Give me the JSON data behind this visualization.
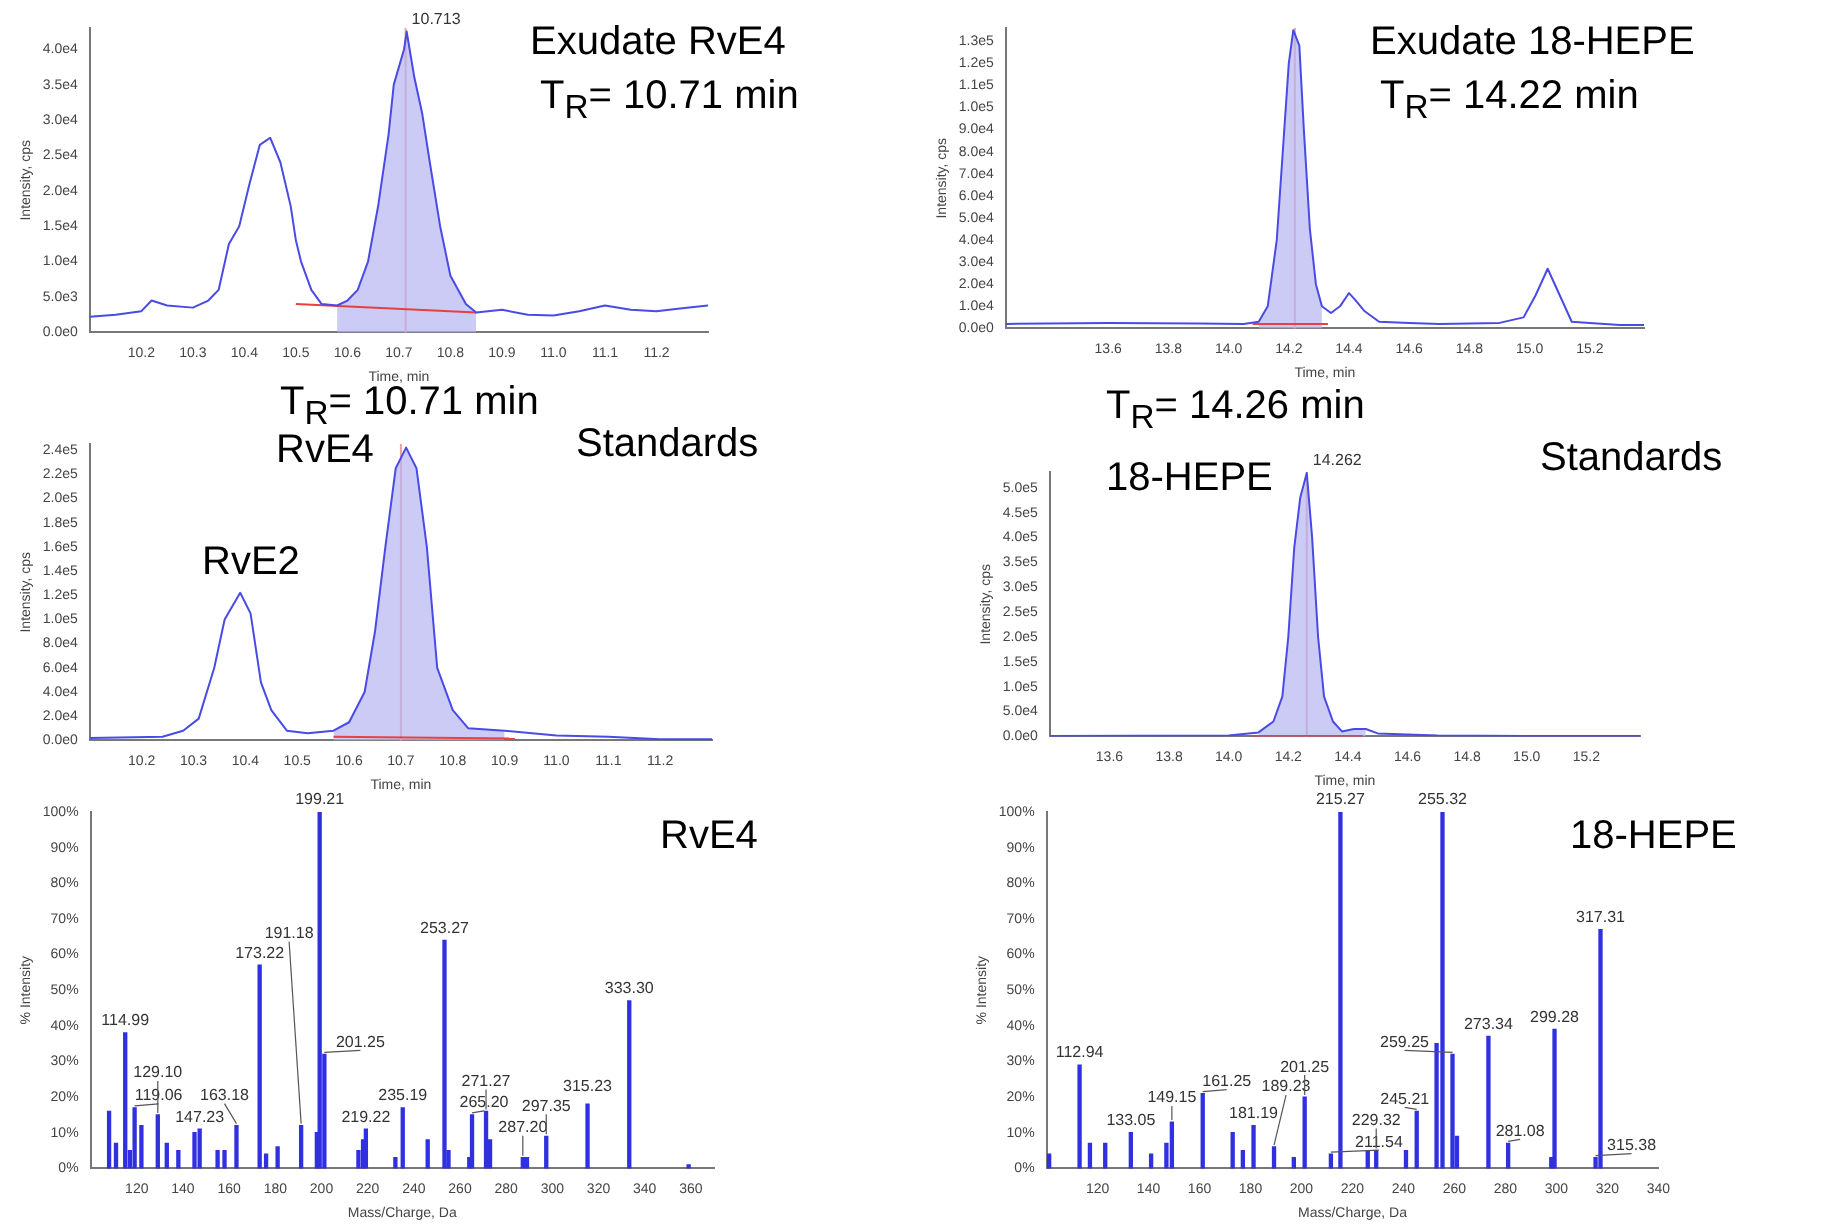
{
  "chart_data": [
    {
      "type": "line",
      "xlabel": "Time, min",
      "ylabel": "Intensity, cps",
      "xlim": [
        10.1,
        11.3
      ],
      "ylim": [
        0,
        43000
      ],
      "xticks": [
        10.2,
        10.3,
        10.4,
        10.5,
        10.6,
        10.7,
        10.8,
        10.9,
        {
          "value": 11,
          "label": "11.0"
        },
        11.1,
        11.2
      ],
      "yticks": [
        {
          "value": 0,
          "label": "0.0e0"
        },
        {
          "value": 5000,
          "label": "5.0e3"
        },
        {
          "value": 10000,
          "label": "1.0e4"
        },
        {
          "value": 15000,
          "label": "1.5e4"
        },
        {
          "value": 20000,
          "label": "2.0e4"
        },
        {
          "value": 25000,
          "label": "2.5e4"
        },
        {
          "value": 30000,
          "label": "3.0e4"
        },
        {
          "value": 35000,
          "label": "3.5e4"
        },
        {
          "value": 40000,
          "label": "4.0e4"
        }
      ],
      "series": [
        {
          "type": "line",
          "color": "#4a4ae6",
          "x": [
            10.1,
            10.15,
            10.2,
            10.22,
            10.25,
            10.3,
            10.33,
            10.35,
            10.37,
            10.39,
            10.41,
            10.43,
            10.45,
            10.47,
            10.49,
            10.5,
            10.51,
            10.53,
            10.55,
            10.58,
            10.6,
            10.62,
            10.64,
            10.66,
            10.68,
            10.69,
            10.71,
            10.715,
            10.73,
            10.745,
            10.76,
            10.78,
            10.8,
            10.83,
            10.85,
            10.9,
            10.95,
            11.0,
            11.05,
            11.1,
            11.15,
            11.2,
            11.25,
            11.3
          ],
          "values": [
            2200,
            2500,
            3000,
            4500,
            3800,
            3500,
            4500,
            6000,
            12500,
            15000,
            21000,
            26500,
            27500,
            24000,
            17800,
            13000,
            10000,
            6000,
            4000,
            3800,
            4500,
            6000,
            10000,
            18000,
            28000,
            35000,
            40000,
            42500,
            36000,
            31000,
            24000,
            15000,
            8000,
            4000,
            2800,
            3200,
            2500,
            2400,
            3000,
            3800,
            3200,
            3000,
            3400,
            3800
          ]
        },
        {
          "type": "area",
          "color": "#b4b4f0",
          "x": [
            10.58,
            10.6,
            10.62,
            10.64,
            10.66,
            10.68,
            10.69,
            10.71,
            10.715,
            10.73,
            10.745,
            10.76,
            10.78,
            10.8,
            10.83,
            10.85
          ],
          "values": [
            3800,
            4500,
            6000,
            10000,
            18000,
            28000,
            35000,
            40000,
            42500,
            36000,
            31000,
            24000,
            15000,
            8000,
            4000,
            2800
          ]
        },
        {
          "type": "line",
          "color": "#e84040",
          "x": [
            10.5,
            10.85
          ],
          "values": [
            4000,
            2800
          ]
        }
      ],
      "ref_lines": [
        {
          "axis": "x",
          "value": 10.713,
          "color": "#f0a0a0"
        }
      ],
      "annotations": [
        "Exudate RvE4",
        "T$_{R}$= 10.71 min",
        {
          "text": "10.713",
          "x": 10.713,
          "y": 42500
        }
      ]
    },
    {
      "type": "line",
      "xlabel": "Time, min",
      "ylabel": "Intensity, cps",
      "xlim": [
        13.26,
        15.38
      ],
      "ylim": [
        0,
        136000
      ],
      "xticks": [
        13.6,
        13.8,
        {
          "value": 14,
          "label": "14.0"
        },
        14.2,
        14.4,
        14.6,
        14.8,
        {
          "value": 15,
          "label": "15.0"
        },
        15.2
      ],
      "yticks": [
        {
          "value": 0,
          "label": "0.0e0"
        },
        {
          "value": 10000,
          "label": "1.0e4"
        },
        {
          "value": 20000,
          "label": "2.0e4"
        },
        {
          "value": 30000,
          "label": "3.0e4"
        },
        {
          "value": 40000,
          "label": "4.0e4"
        },
        {
          "value": 50000,
          "label": "5.0e4"
        },
        {
          "value": 60000,
          "label": "6.0e4"
        },
        {
          "value": 70000,
          "label": "7.0e4"
        },
        {
          "value": 80000,
          "label": "8.0e4"
        },
        {
          "value": 90000,
          "label": "9.0e4"
        },
        {
          "value": 100000,
          "label": "1.0e5"
        },
        {
          "value": 110000,
          "label": "1.1e5"
        },
        {
          "value": 120000,
          "label": "1.2e5"
        },
        {
          "value": 130000,
          "label": "1.3e5"
        }
      ],
      "series": [
        {
          "type": "line",
          "color": "#4a4ae6",
          "x": [
            13.26,
            13.6,
            13.9,
            14.05,
            14.1,
            14.13,
            14.16,
            14.18,
            14.2,
            14.215,
            14.235,
            14.25,
            14.27,
            14.29,
            14.31,
            14.34,
            14.37,
            14.4,
            14.42,
            14.45,
            14.5,
            14.6,
            14.7,
            14.9,
            14.98,
            15.02,
            15.06,
            15.1,
            15.14,
            15.2,
            15.3,
            15.38
          ],
          "values": [
            2000,
            2500,
            2200,
            2000,
            3000,
            10000,
            40000,
            80000,
            120000,
            135000,
            128000,
            90000,
            45000,
            20000,
            10000,
            7000,
            10000,
            16000,
            13000,
            8000,
            3000,
            2500,
            2000,
            2500,
            5000,
            15000,
            27000,
            15000,
            3000,
            2500,
            1500,
            1500
          ]
        },
        {
          "type": "area",
          "color": "#b4b4f0",
          "x": [
            14.1,
            14.13,
            14.16,
            14.18,
            14.2,
            14.215,
            14.235,
            14.25,
            14.27,
            14.29,
            14.31
          ],
          "values": [
            3000,
            10000,
            40000,
            80000,
            120000,
            135000,
            128000,
            90000,
            45000,
            20000,
            10000
          ]
        },
        {
          "type": "line",
          "color": "#e84040",
          "x": [
            14.08,
            14.33
          ],
          "values": [
            2000,
            2000
          ]
        }
      ],
      "ref_lines": [
        {
          "axis": "x",
          "value": 14.22,
          "color": "#f0a0a0"
        }
      ],
      "annotations": [
        "Exudate 18-HEPE",
        "T$_{R}$= 14.22 min"
      ]
    },
    {
      "type": "line",
      "xlabel": "Time, min",
      "ylabel": "Intensity, cps",
      "xlim": [
        10.1,
        11.3
      ],
      "ylim": [
        0,
        245000
      ],
      "xticks": [
        10.2,
        10.3,
        10.4,
        10.5,
        10.6,
        10.7,
        10.8,
        10.9,
        {
          "value": 11,
          "label": "11.0"
        },
        11.1,
        11.2
      ],
      "yticks": [
        {
          "value": 0,
          "label": "0.0e0"
        },
        {
          "value": 20000,
          "label": "2.0e4"
        },
        {
          "value": 40000,
          "label": "4.0e4"
        },
        {
          "value": 60000,
          "label": "6.0e4"
        },
        {
          "value": 80000,
          "label": "8.0e4"
        },
        {
          "value": 100000,
          "label": "1.0e5"
        },
        {
          "value": 120000,
          "label": "1.2e5"
        },
        {
          "value": 140000,
          "label": "1.4e5"
        },
        {
          "value": 160000,
          "label": "1.6e5"
        },
        {
          "value": 180000,
          "label": "1.8e5"
        },
        {
          "value": 200000,
          "label": "2.0e5"
        },
        {
          "value": 220000,
          "label": "2.2e5"
        },
        {
          "value": 240000,
          "label": "2.4e5"
        }
      ],
      "series": [
        {
          "type": "line",
          "color": "#4a4ae6",
          "x": [
            10.1,
            10.24,
            10.28,
            10.31,
            10.34,
            10.36,
            10.39,
            10.41,
            10.43,
            10.45,
            10.48,
            10.52,
            10.57,
            10.6,
            10.63,
            10.65,
            10.67,
            10.69,
            10.71,
            10.73,
            10.75,
            10.77,
            10.8,
            10.83,
            10.9,
            11.0,
            11.1,
            11.2,
            11.3
          ],
          "values": [
            2000,
            3000,
            8000,
            18000,
            60000,
            100000,
            122000,
            105000,
            48000,
            25000,
            8000,
            6000,
            8000,
            15000,
            40000,
            90000,
            160000,
            225000,
            242000,
            225000,
            160000,
            60000,
            25000,
            10000,
            8000,
            4000,
            3000,
            1000,
            1000
          ]
        },
        {
          "type": "area",
          "color": "#b4b4f0",
          "x": [
            10.57,
            10.6,
            10.63,
            10.65,
            10.67,
            10.69,
            10.71,
            10.73,
            10.75,
            10.77,
            10.8,
            10.83,
            10.9
          ],
          "values": [
            8000,
            15000,
            40000,
            90000,
            160000,
            225000,
            242000,
            225000,
            160000,
            60000,
            25000,
            10000,
            8000
          ]
        },
        {
          "type": "line",
          "color": "#e84040",
          "x": [
            10.57,
            10.92
          ],
          "values": [
            3000,
            1500
          ]
        }
      ],
      "ref_lines": [
        {
          "axis": "x",
          "value": 10.7,
          "color": "#f0a0a0"
        }
      ],
      "annotations": [
        "T$_{R}$= 10.71 min",
        "RvE4",
        "Standards",
        "RvE2"
      ]
    },
    {
      "type": "line",
      "xlabel": "Time, min",
      "ylabel": "Intensity, cps",
      "xlim": [
        13.4,
        15.38
      ],
      "ylim": [
        0,
        532000
      ],
      "xticks": [
        13.6,
        13.8,
        {
          "value": 14,
          "label": "14.0"
        },
        14.2,
        14.4,
        14.6,
        14.8,
        {
          "value": 15,
          "label": "15.0"
        },
        15.2
      ],
      "yticks": [
        {
          "value": 0,
          "label": "0.0e0"
        },
        {
          "value": 50000,
          "label": "5.0e4"
        },
        {
          "value": 100000,
          "label": "1.0e5"
        },
        {
          "value": 150000,
          "label": "1.5e5"
        },
        {
          "value": 200000,
          "label": "2.0e5"
        },
        {
          "value": 250000,
          "label": "2.5e5"
        },
        {
          "value": 300000,
          "label": "3.0e5"
        },
        {
          "value": 350000,
          "label": "3.5e5"
        },
        {
          "value": 400000,
          "label": "4.0e5"
        },
        {
          "value": 450000,
          "label": "4.5e5"
        },
        {
          "value": 500000,
          "label": "5.0e5"
        }
      ],
      "series": [
        {
          "type": "line",
          "color": "#4a4ae6",
          "x": [
            13.4,
            14.0,
            14.1,
            14.15,
            14.18,
            14.2,
            14.22,
            14.24,
            14.262,
            14.28,
            14.3,
            14.32,
            14.35,
            14.38,
            14.42,
            14.46,
            14.5,
            14.6,
            14.7,
            15.0,
            15.38
          ],
          "values": [
            1000,
            2000,
            8000,
            30000,
            80000,
            200000,
            380000,
            480000,
            530000,
            400000,
            200000,
            80000,
            30000,
            10000,
            15000,
            15000,
            6000,
            4000,
            2000,
            1000,
            1000
          ]
        },
        {
          "type": "area",
          "color": "#b4b4f0",
          "x": [
            14.1,
            14.15,
            14.18,
            14.2,
            14.22,
            14.24,
            14.262,
            14.28,
            14.3,
            14.32,
            14.35,
            14.38,
            14.42,
            14.46
          ],
          "values": [
            8000,
            30000,
            80000,
            200000,
            380000,
            480000,
            530000,
            400000,
            200000,
            80000,
            30000,
            10000,
            15000,
            15000
          ]
        },
        {
          "type": "line",
          "color": "#e84040",
          "x": [
            14.08,
            14.45
          ],
          "values": [
            1000,
            1000
          ]
        }
      ],
      "ref_lines": [
        {
          "axis": "x",
          "value": 14.262,
          "color": "#f0a0a0"
        }
      ],
      "annotations": [
        "T$_{R}$= 14.26 min",
        "18-HEPE",
        "Standards",
        {
          "text": "14.262",
          "x": 14.262,
          "y": 530000
        }
      ]
    },
    {
      "type": "bar",
      "xlabel": "Mass/Charge, Da",
      "ylabel": "% Intensity",
      "color": "#3030e0",
      "xlim": [
        100,
        370
      ],
      "ylim": [
        0,
        100
      ],
      "xticks": [
        120,
        140,
        160,
        180,
        200,
        220,
        240,
        260,
        280,
        300,
        320,
        340,
        360
      ],
      "yticks": [
        {
          "value": 0,
          "label": "0%"
        },
        {
          "value": 10,
          "label": "10%"
        },
        {
          "value": 20,
          "label": "20%"
        },
        {
          "value": 30,
          "label": "30%"
        },
        {
          "value": 40,
          "label": "40%"
        },
        {
          "value": 50,
          "label": "50%"
        },
        {
          "value": 60,
          "label": "60%"
        },
        {
          "value": 70,
          "label": "70%"
        },
        {
          "value": 80,
          "label": "80%"
        },
        {
          "value": 90,
          "label": "90%"
        },
        {
          "value": 100,
          "label": "100%"
        }
      ],
      "x": [
        108,
        111,
        114.99,
        117,
        119.06,
        122,
        129.1,
        133,
        138,
        145,
        147.23,
        155,
        158,
        163.18,
        173.22,
        176,
        181,
        191.18,
        198,
        199.21,
        201.25,
        216,
        218,
        219.22,
        232,
        235.19,
        246,
        253.27,
        255,
        264,
        265.2,
        271.27,
        273,
        287.2,
        289,
        297.35,
        315.23,
        333.3,
        359
      ],
      "values": [
        16,
        7,
        38,
        5,
        17,
        12,
        15,
        7,
        5,
        10,
        11,
        5,
        5,
        12,
        57,
        4,
        6,
        12,
        10,
        100,
        32,
        5,
        8,
        11,
        3,
        17,
        8,
        64,
        5,
        3,
        15,
        16,
        8,
        3,
        3,
        9,
        18,
        47,
        1
      ],
      "annotations": [
        "RvE4",
        {
          "text": "114.99",
          "x": 114.99,
          "y": 38
        },
        {
          "text": "119.06",
          "x": 119.06,
          "y": 17
        },
        {
          "text": "129.10",
          "x": 129.1,
          "y": 15
        },
        {
          "text": "147.23",
          "x": 147.23,
          "y": 11
        },
        {
          "text": "163.18",
          "x": 163.18,
          "y": 12
        },
        {
          "text": "173.22",
          "x": 173.22,
          "y": 57
        },
        {
          "text": "191.18",
          "x": 191.18,
          "y": 12
        },
        {
          "text": "199.21",
          "x": 199.21,
          "y": 100
        },
        {
          "text": "201.25",
          "x": 201.25,
          "y": 32
        },
        {
          "text": "219.22",
          "x": 219.22,
          "y": 11
        },
        {
          "text": "235.19",
          "x": 235.19,
          "y": 17
        },
        {
          "text": "253.27",
          "x": 253.27,
          "y": 64
        },
        {
          "text": "265.20",
          "x": 265.2,
          "y": 15
        },
        {
          "text": "271.27",
          "x": 271.27,
          "y": 16
        },
        {
          "text": "287.20",
          "x": 287.2,
          "y": 3
        },
        {
          "text": "297.35",
          "x": 297.35,
          "y": 9
        },
        {
          "text": "315.23",
          "x": 315.23,
          "y": 18
        },
        {
          "text": "333.30",
          "x": 333.3,
          "y": 47
        }
      ]
    },
    {
      "type": "bar",
      "xlabel": "Mass/Charge, Da",
      "ylabel": "% Intensity",
      "color": "#3030e0",
      "xlim": [
        100,
        340
      ],
      "ylim": [
        0,
        100
      ],
      "xticks": [
        120,
        140,
        160,
        180,
        200,
        220,
        240,
        260,
        280,
        300,
        320,
        340
      ],
      "yticks": [
        {
          "value": 0,
          "label": "0%"
        },
        {
          "value": 10,
          "label": "10%"
        },
        {
          "value": 20,
          "label": "20%"
        },
        {
          "value": 30,
          "label": "30%"
        },
        {
          "value": 40,
          "label": "40%"
        },
        {
          "value": 50,
          "label": "50%"
        },
        {
          "value": 60,
          "label": "60%"
        },
        {
          "value": 70,
          "label": "70%"
        },
        {
          "value": 80,
          "label": "80%"
        },
        {
          "value": 90,
          "label": "90%"
        },
        {
          "value": 100,
          "label": "100%"
        }
      ],
      "x": [
        101,
        112.94,
        117,
        123,
        133.05,
        141,
        147,
        149.15,
        161.25,
        173,
        177,
        181.19,
        189.23,
        197,
        201.25,
        211.54,
        215.27,
        226,
        229.32,
        241,
        245.21,
        253,
        255.32,
        259.25,
        261,
        273.34,
        281.08,
        298,
        299.28,
        315.38,
        317.31
      ],
      "values": [
        4,
        29,
        7,
        7,
        10,
        4,
        7,
        13,
        21,
        10,
        5,
        12,
        6,
        3,
        20,
        4,
        100,
        5,
        5,
        5,
        16,
        35,
        100,
        32,
        9,
        37,
        7,
        3,
        39,
        3,
        67
      ],
      "annotations": [
        "18-HEPE",
        {
          "text": "112.94",
          "x": 112.94,
          "y": 29
        },
        {
          "text": "133.05",
          "x": 133.05,
          "y": 10
        },
        {
          "text": "149.15",
          "x": 149.15,
          "y": 13
        },
        {
          "text": "161.25",
          "x": 161.25,
          "y": 21
        },
        {
          "text": "181.19",
          "x": 181.19,
          "y": 12
        },
        {
          "text": "189.23",
          "x": 189.23,
          "y": 6
        },
        {
          "text": "201.25",
          "x": 201.25,
          "y": 20
        },
        {
          "text": "211.54",
          "x": 211.54,
          "y": 4
        },
        {
          "text": "215.27",
          "x": 215.27,
          "y": 100
        },
        {
          "text": "229.32",
          "x": 229.32,
          "y": 5
        },
        {
          "text": "245.21",
          "x": 245.21,
          "y": 16
        },
        {
          "text": "255.32",
          "x": 255.32,
          "y": 100
        },
        {
          "text": "259.25",
          "x": 259.25,
          "y": 32
        },
        {
          "text": "273.34",
          "x": 273.34,
          "y": 37
        },
        {
          "text": "281.08",
          "x": 281.08,
          "y": 7
        },
        {
          "text": "299.28",
          "x": 299.28,
          "y": 39
        },
        {
          "text": "315.38",
          "x": 315.38,
          "y": 3
        },
        {
          "text": "317.31",
          "x": 317.31,
          "y": 67
        }
      ]
    }
  ]
}
